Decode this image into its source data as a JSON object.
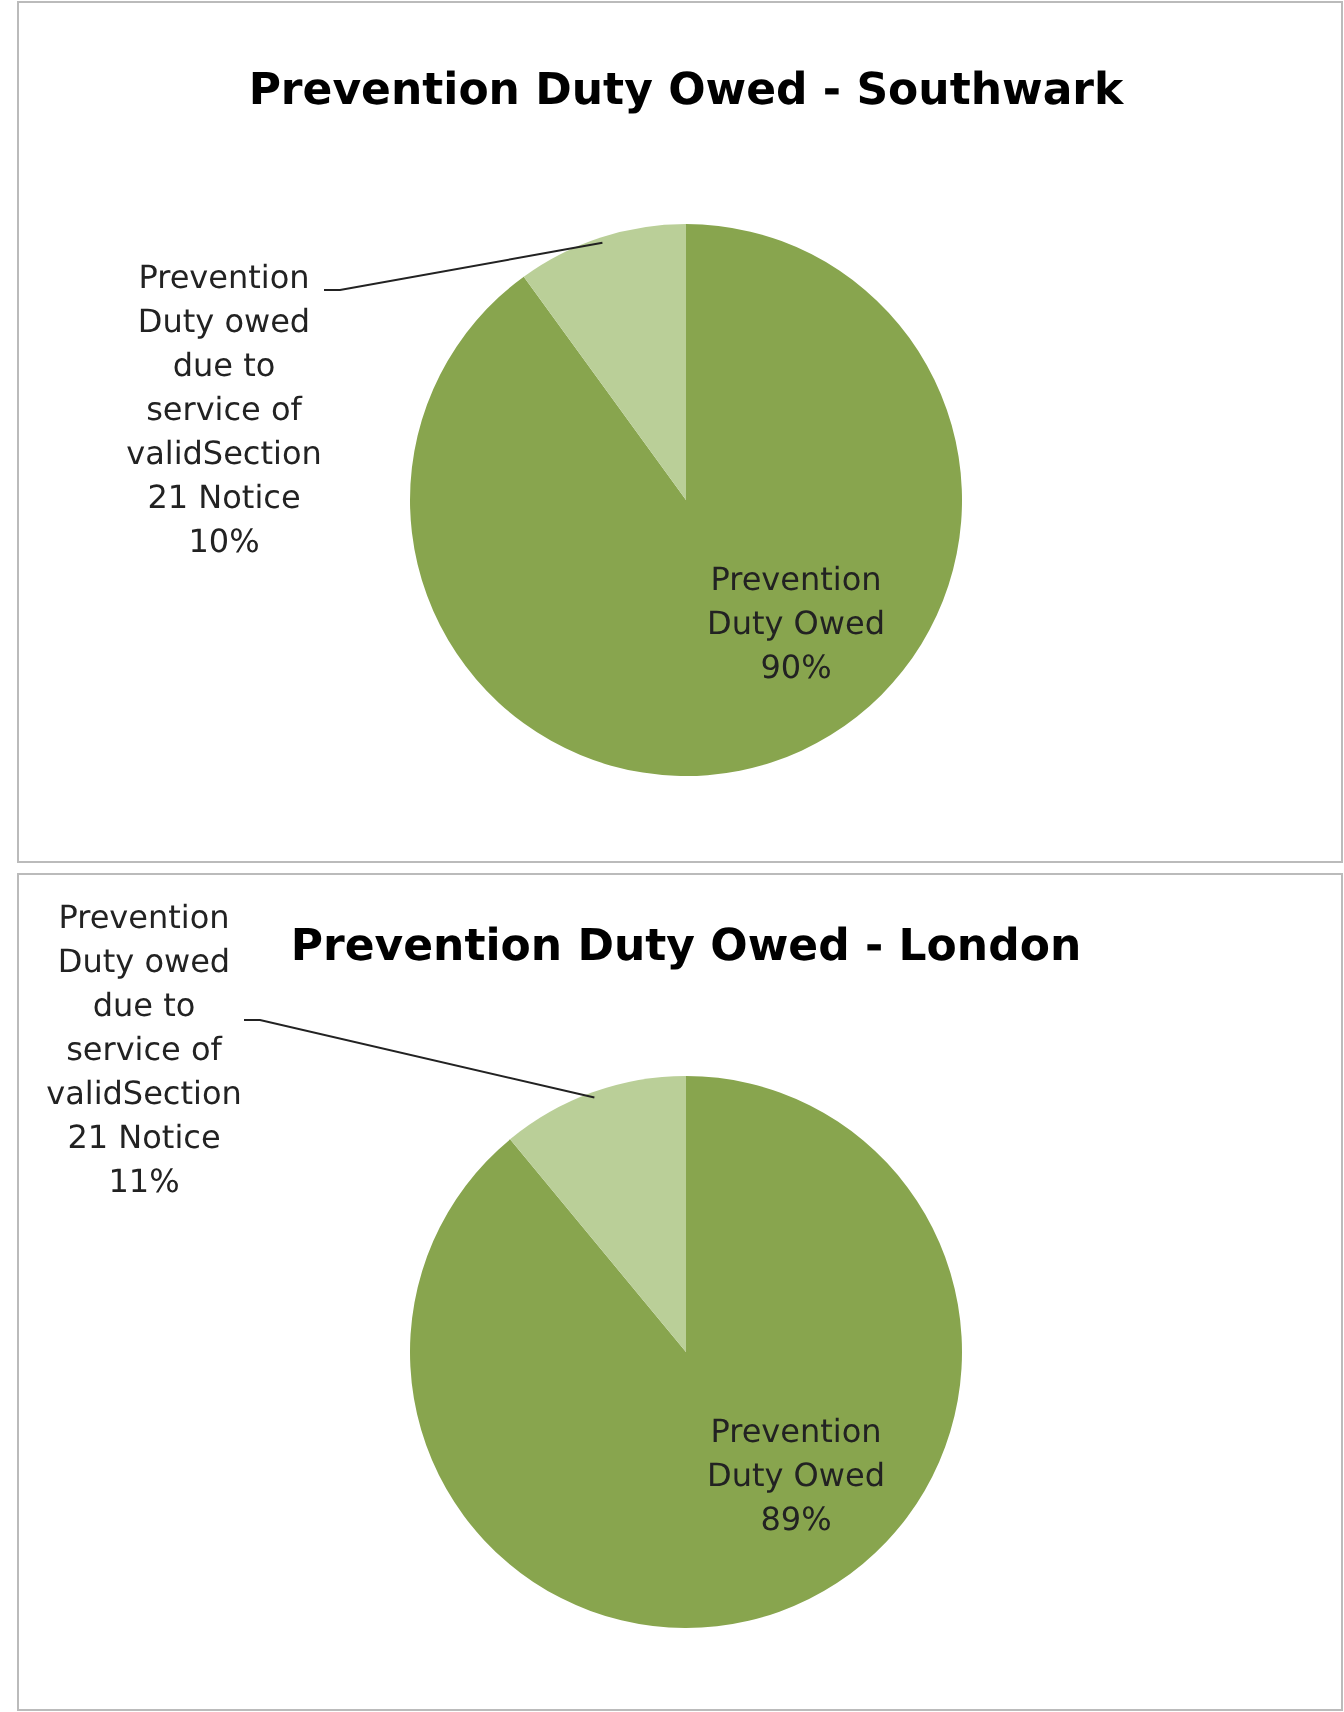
{
  "chart_data": [
    {
      "type": "pie",
      "title": "Prevention Duty Owed - Southwark",
      "categories": [
        "Prevention Duty Owed",
        "Prevention Duty owed due to service of validSection 21 Notice"
      ],
      "values": [
        90,
        10
      ],
      "value_labels": [
        "90%",
        "10%"
      ],
      "colors": [
        "#88a54e",
        "#bacf98"
      ]
    },
    {
      "type": "pie",
      "title": "Prevention Duty Owed - London",
      "categories": [
        "Prevention Duty Owed",
        "Prevention Duty owed due to service of validSection 21 Notice"
      ],
      "values": [
        89,
        11
      ],
      "value_labels": [
        "89%",
        "11%"
      ],
      "colors": [
        "#88a54e",
        "#bacf98"
      ]
    }
  ]
}
